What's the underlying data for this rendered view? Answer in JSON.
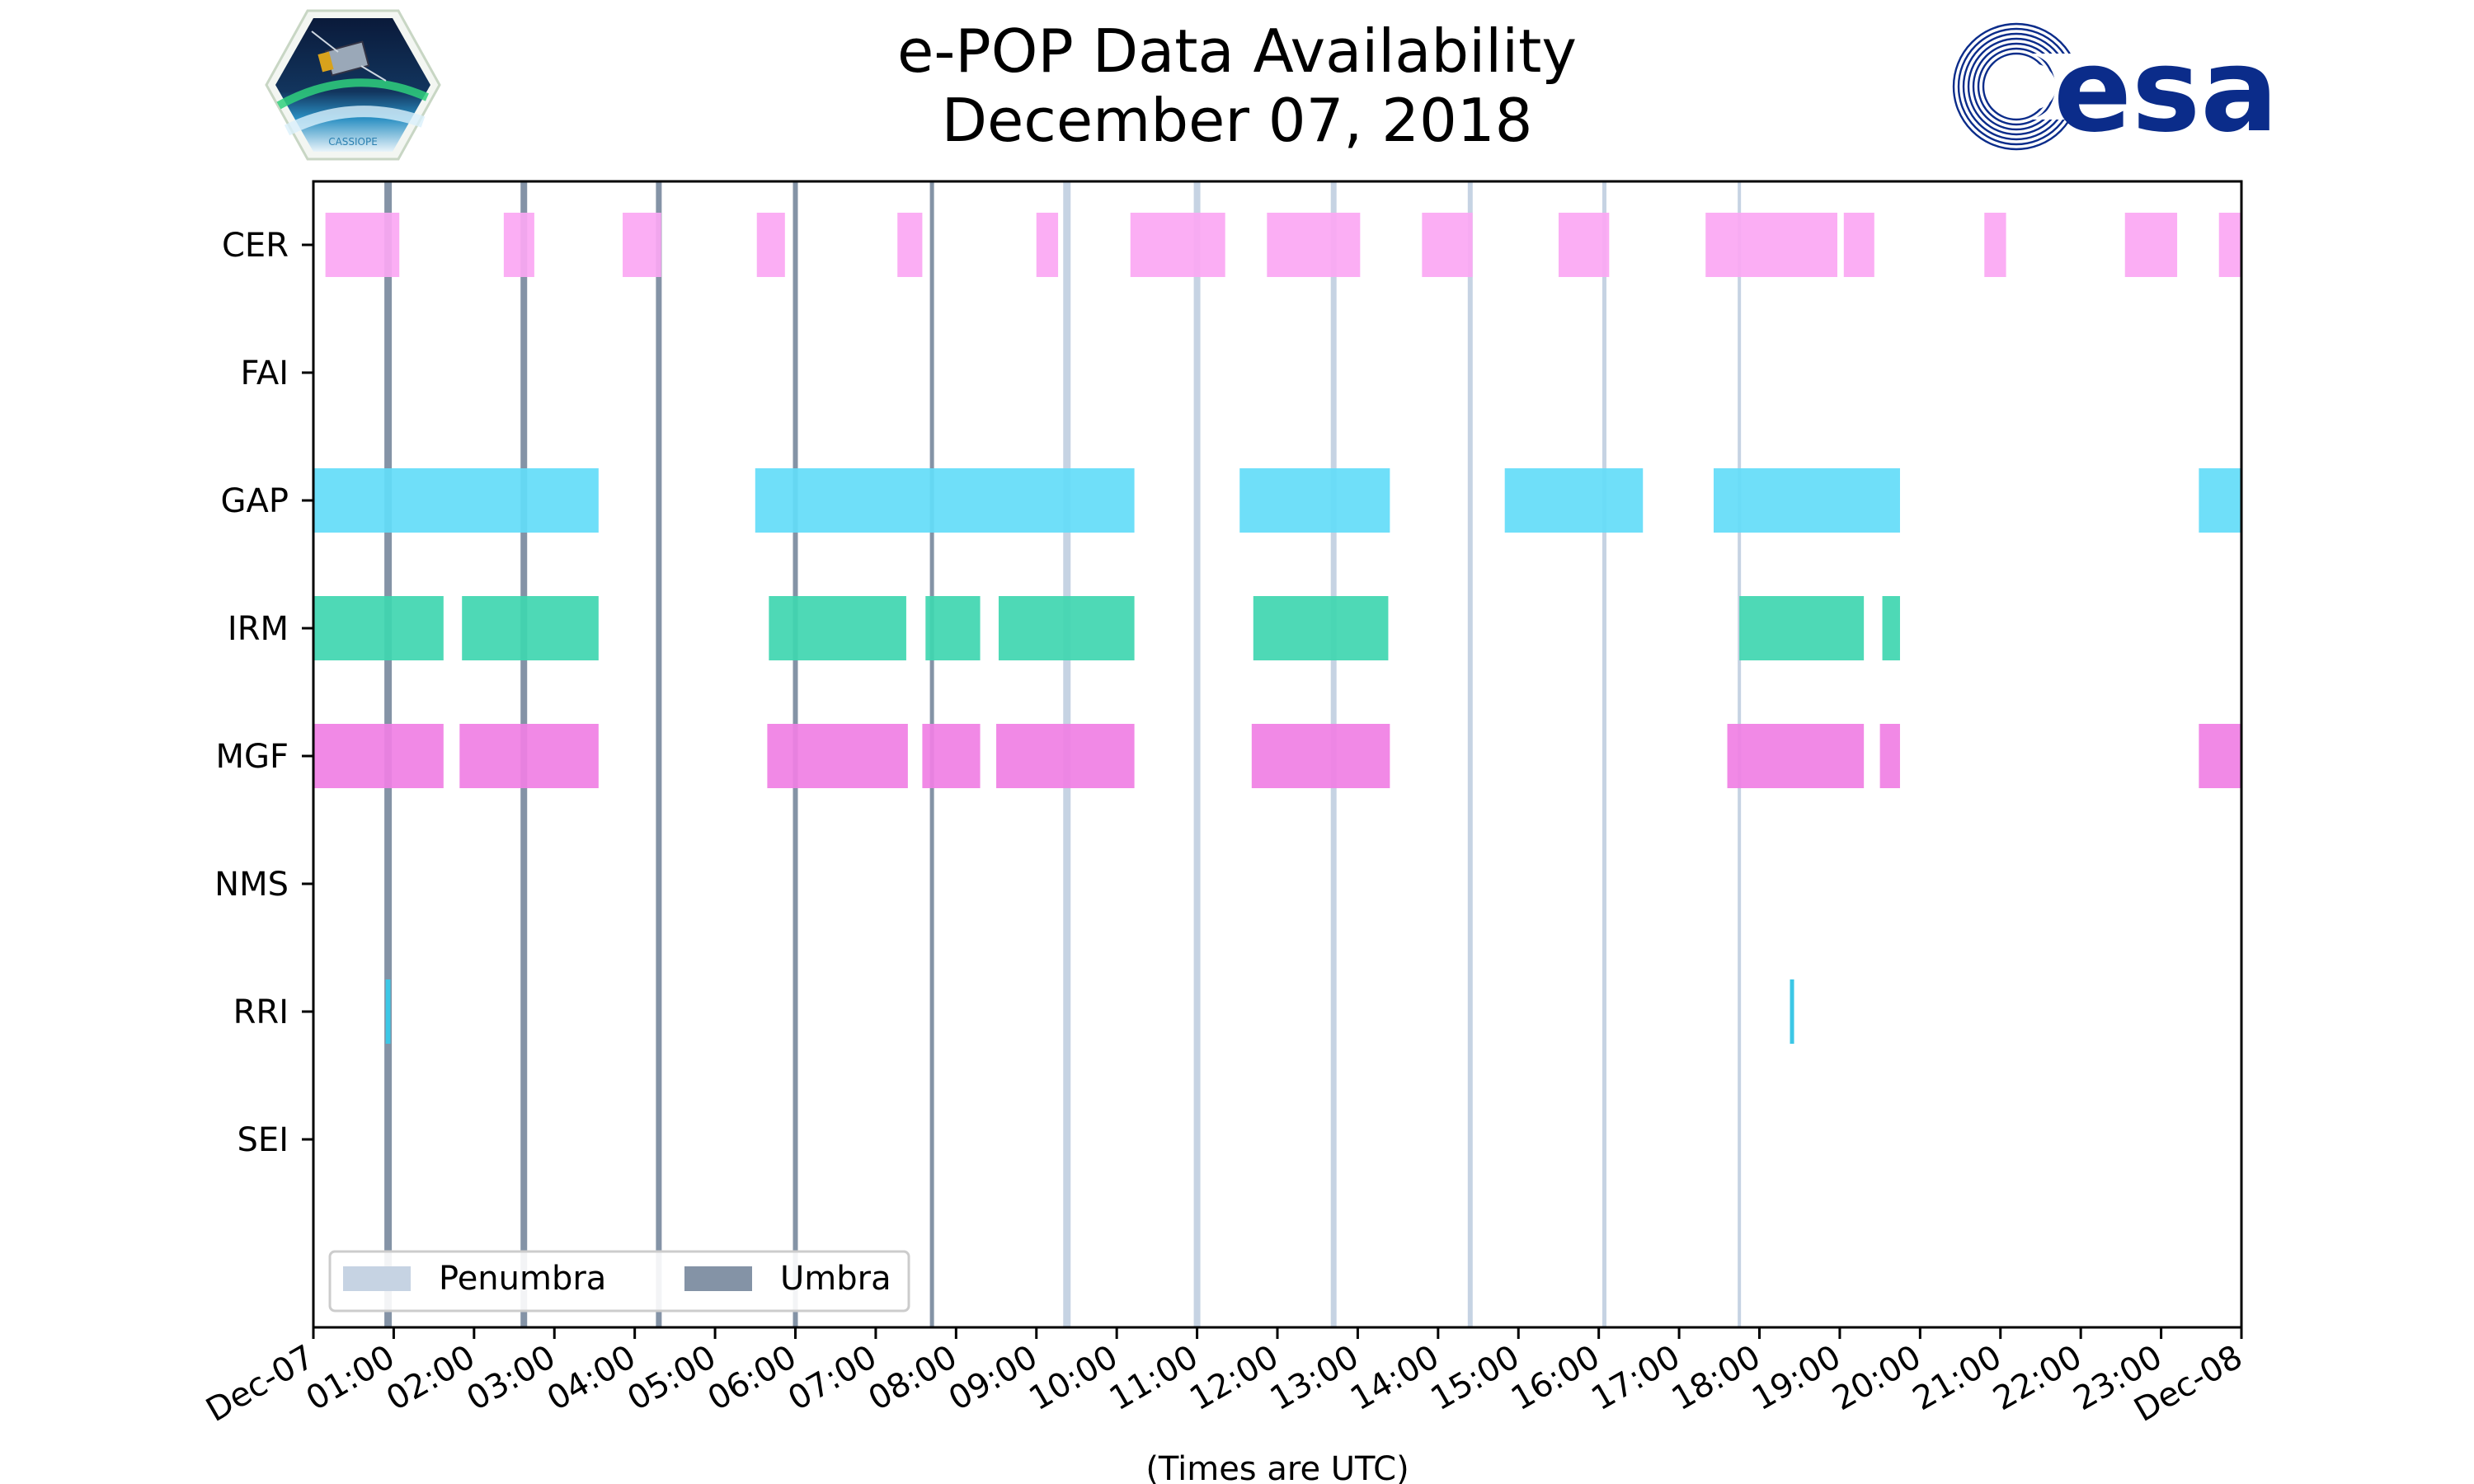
{
  "header": {
    "title_line1": "e-POP Data Availability",
    "title_line2": "December 07, 2018",
    "left_logo_text": "CASSIOPE",
    "right_logo_text": "esa"
  },
  "colors": {
    "CER": "#fba7f3",
    "GAP": "#63dcf8",
    "IRM": "#3fd6b0",
    "MGF": "#f07fe4",
    "RRI": "#3cc7e6",
    "penumbra": "#c6d3e3",
    "umbra": "#8493a6",
    "esa_blue": "#0b2c8a"
  },
  "chart_data": {
    "type": "timeline",
    "title": "e-POP Data Availability December 07, 2018",
    "xlabel": "(Times are UTC)",
    "xlim_hours": [
      0,
      24
    ],
    "x_tick_labels": [
      "Dec-07",
      "01:00",
      "02:00",
      "03:00",
      "04:00",
      "05:00",
      "06:00",
      "07:00",
      "08:00",
      "09:00",
      "10:00",
      "11:00",
      "12:00",
      "13:00",
      "14:00",
      "15:00",
      "16:00",
      "17:00",
      "18:00",
      "19:00",
      "20:00",
      "21:00",
      "22:00",
      "23:00",
      "Dec-08"
    ],
    "instruments": [
      "CER",
      "FAI",
      "GAP",
      "IRM",
      "MGF",
      "NMS",
      "RRI",
      "SEI"
    ],
    "segments": {
      "CER": [
        [
          0.15,
          1.07
        ],
        [
          2.37,
          2.75
        ],
        [
          3.85,
          4.33
        ],
        [
          5.52,
          5.87
        ],
        [
          7.27,
          7.58
        ],
        [
          9.0,
          9.27
        ],
        [
          10.17,
          11.35
        ],
        [
          11.87,
          13.03
        ],
        [
          13.8,
          14.43
        ],
        [
          15.5,
          16.13
        ],
        [
          17.33,
          18.97
        ],
        [
          19.05,
          19.43
        ],
        [
          20.8,
          21.07
        ],
        [
          22.55,
          23.2
        ],
        [
          23.72,
          24.0
        ]
      ],
      "FAI": [],
      "GAP": [
        [
          0.0,
          3.55
        ],
        [
          5.5,
          10.22
        ],
        [
          11.53,
          13.4
        ],
        [
          14.83,
          16.55
        ],
        [
          17.43,
          19.75
        ],
        [
          23.47,
          24.0
        ]
      ],
      "IRM": [
        [
          0.0,
          1.62
        ],
        [
          1.85,
          3.55
        ],
        [
          5.67,
          7.38
        ],
        [
          7.62,
          8.3
        ],
        [
          8.53,
          10.22
        ],
        [
          11.7,
          13.38
        ],
        [
          17.75,
          19.3
        ],
        [
          19.53,
          19.75
        ]
      ],
      "MGF": [
        [
          0.0,
          1.62
        ],
        [
          1.82,
          3.55
        ],
        [
          5.65,
          7.4
        ],
        [
          7.58,
          8.3
        ],
        [
          8.5,
          10.22
        ],
        [
          11.68,
          13.4
        ],
        [
          17.6,
          19.3
        ],
        [
          19.5,
          19.75
        ],
        [
          23.47,
          24.0
        ]
      ],
      "NMS": [],
      "RRI": [
        [
          0.9,
          0.96
        ],
        [
          18.38,
          18.43
        ]
      ],
      "SEI": []
    },
    "eclipse_lines": {
      "umbra_hours": [
        0.93,
        2.62,
        4.3,
        6.0,
        7.7
      ],
      "penumbra_hours": [
        9.38,
        11.0,
        12.7,
        14.4,
        16.07,
        17.75
      ]
    },
    "legend": {
      "placement": "lower-left",
      "entries": [
        "Penumbra",
        "Umbra"
      ]
    }
  }
}
